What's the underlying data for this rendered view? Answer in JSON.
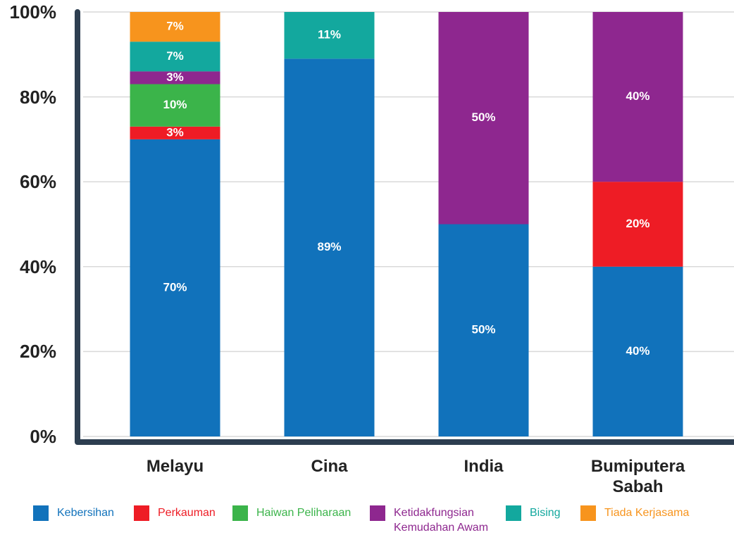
{
  "chart_data": {
    "type": "stacked_bar",
    "categories": [
      "Melayu",
      "Cina",
      "India",
      "Bumiputera Sabah"
    ],
    "series": [
      {
        "name": "Kebersihan",
        "color": "#1172bb",
        "values": [
          70,
          89,
          50,
          40
        ],
        "value_labels": [
          "70%",
          "89%",
          "50%",
          "40%"
        ]
      },
      {
        "name": "Perkauman",
        "color": "#ee1c25",
        "values": [
          3,
          null,
          null,
          20
        ],
        "value_labels": [
          "3%",
          null,
          null,
          "20%"
        ]
      },
      {
        "name": "Haiwan Peliharaan",
        "color": "#3bb44a",
        "values": [
          10,
          null,
          null,
          null
        ],
        "value_labels": [
          "10%",
          null,
          null,
          null
        ]
      },
      {
        "name": "Ketidakfungsian Kemudahan Awam",
        "color": "#8e278f",
        "values": [
          3,
          null,
          50,
          40
        ],
        "value_labels": [
          "3%",
          null,
          "50%",
          "40%"
        ]
      },
      {
        "name": "Bising",
        "color": "#13a89e",
        "values": [
          7,
          11,
          null,
          null
        ],
        "value_labels": [
          "7%",
          "11%",
          null,
          null
        ]
      },
      {
        "name": "Tiada Kerjasama",
        "color": "#f7941d",
        "values": [
          7,
          null,
          null,
          null
        ],
        "value_labels": [
          "7%",
          null,
          null,
          null
        ]
      }
    ],
    "ylim": [
      0,
      100
    ],
    "yticks": [
      {
        "value": 0,
        "label": "0%"
      },
      {
        "value": 20,
        "label": "20%"
      },
      {
        "value": 40,
        "label": "40%"
      },
      {
        "value": 60,
        "label": "60%"
      },
      {
        "value": 80,
        "label": "80%"
      },
      {
        "value": 100,
        "label": "100%"
      }
    ],
    "grid": true
  }
}
